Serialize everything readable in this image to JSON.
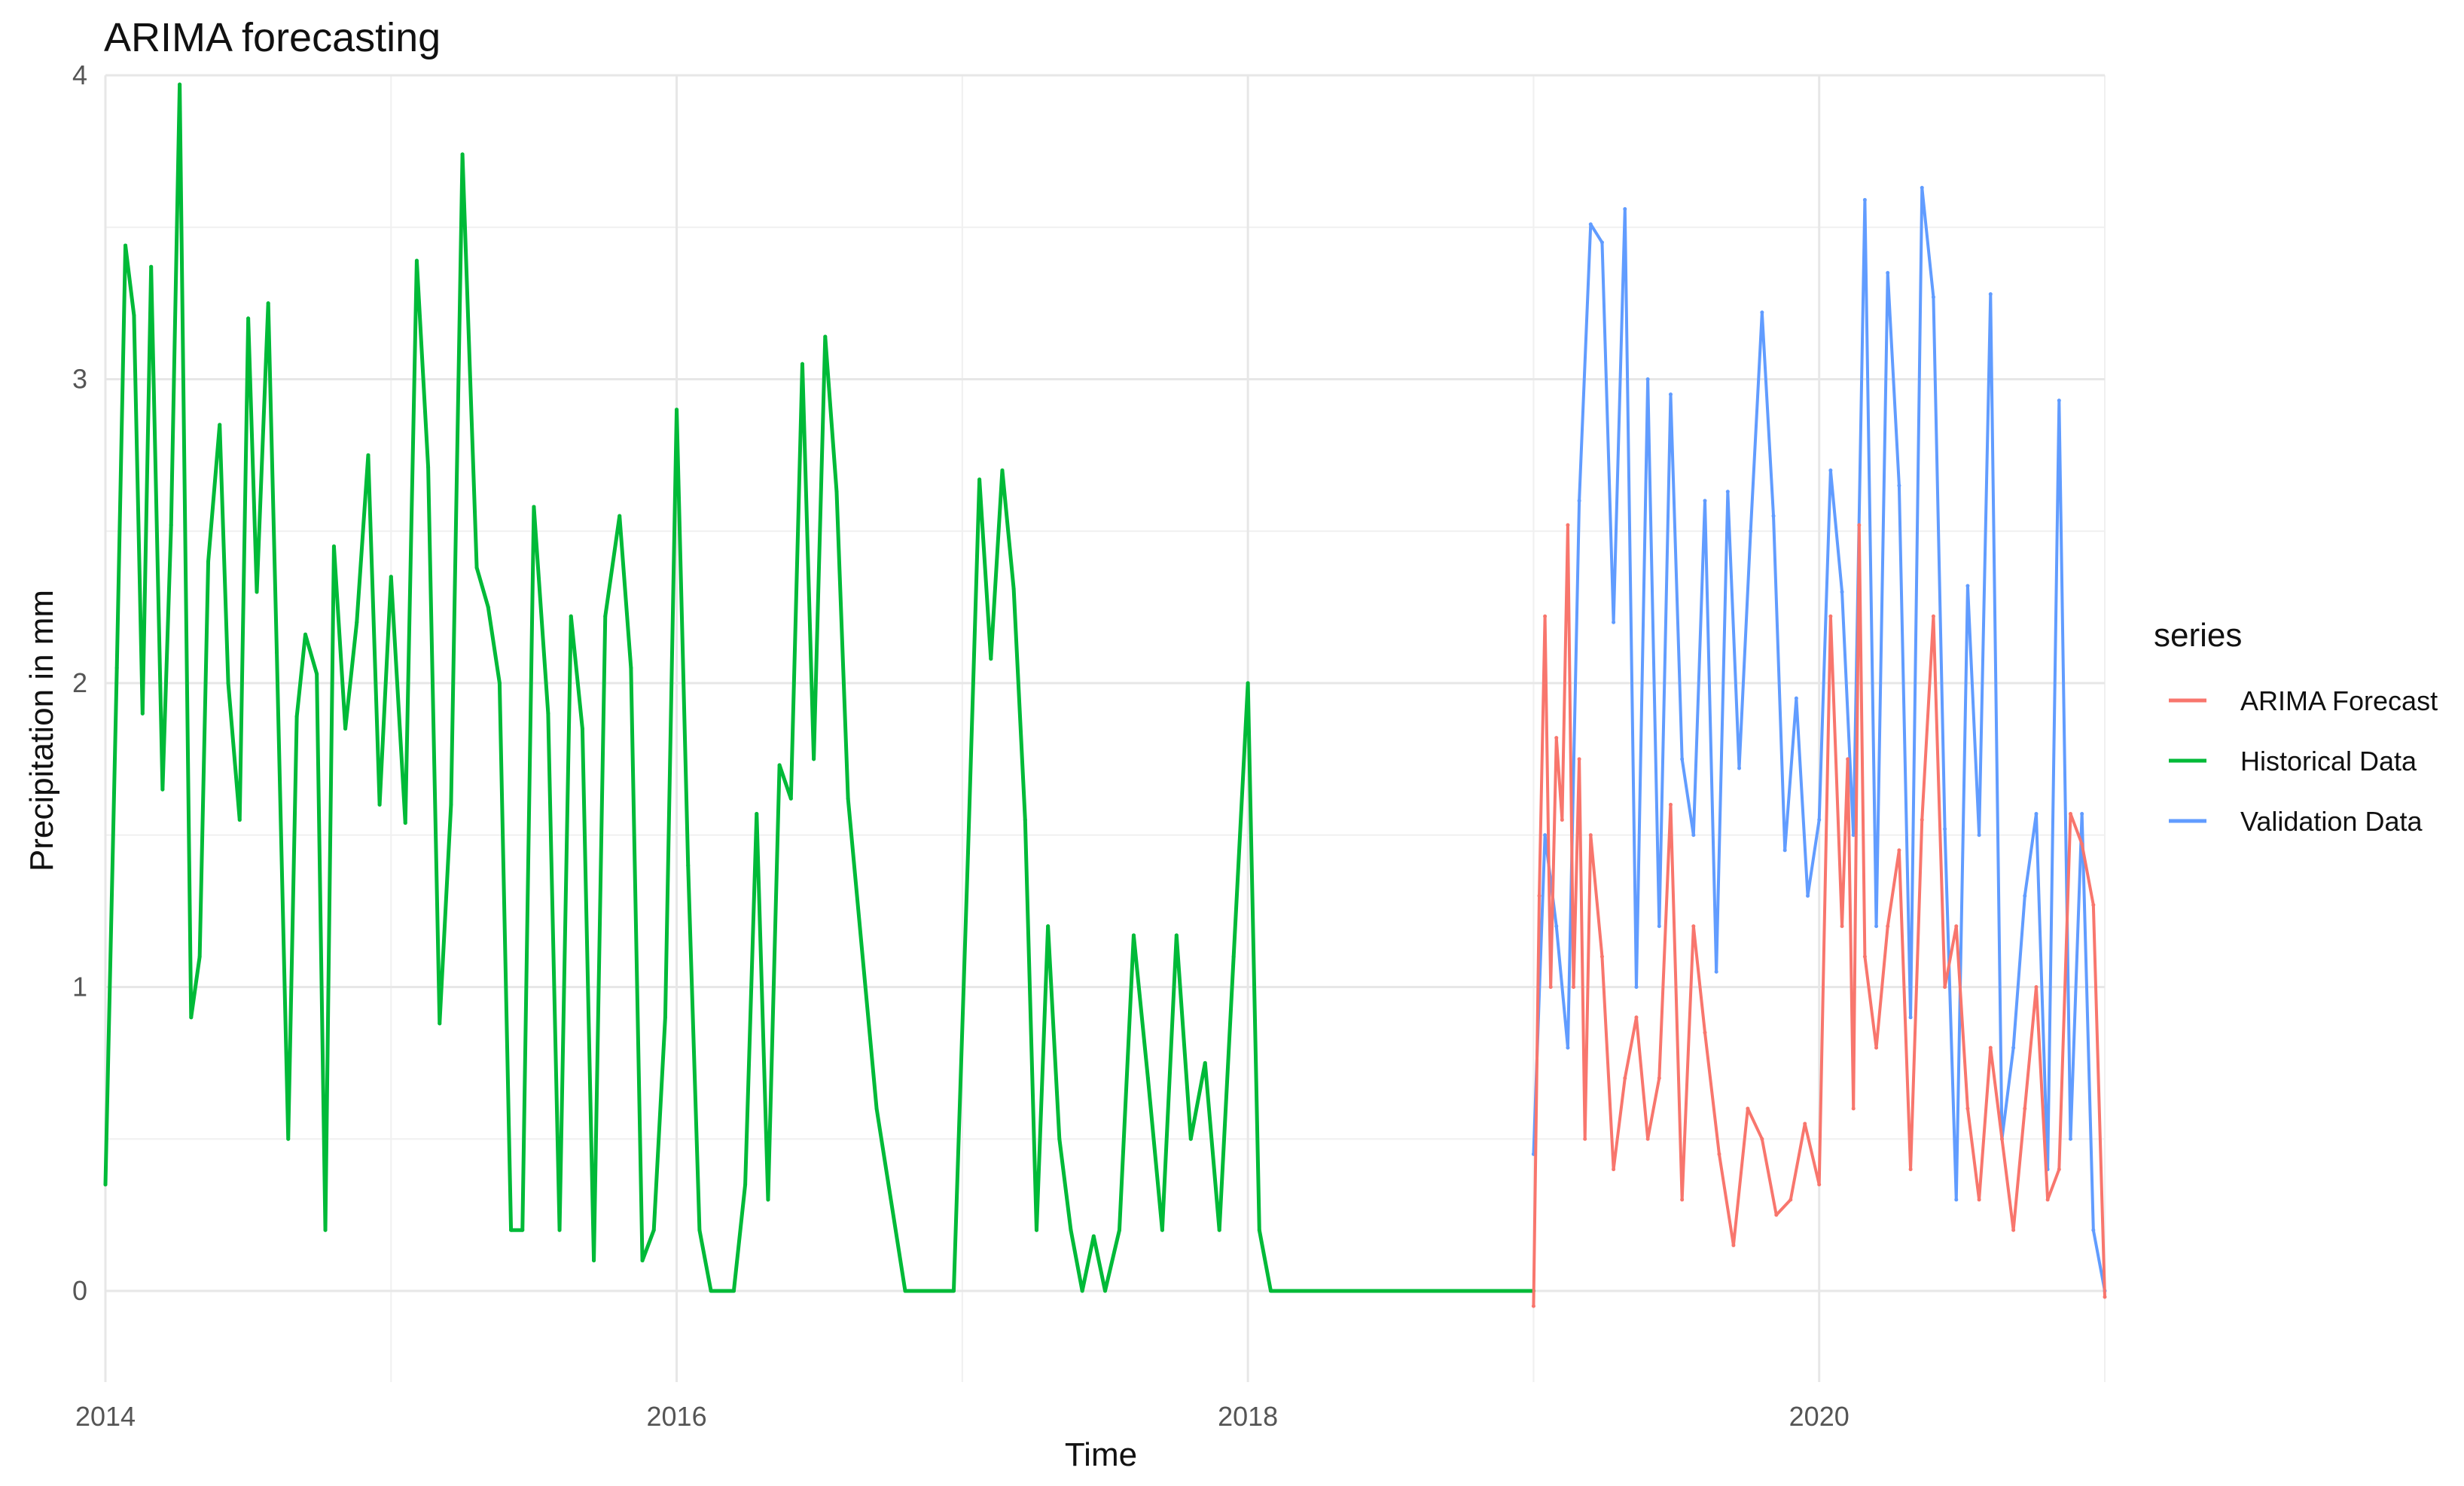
{
  "chart_data": {
    "type": "line",
    "title": "ARIMA forecasting",
    "xlabel": "Time",
    "ylabel": "Precipitation in mm",
    "x_ticks": [
      2014,
      2016,
      2018,
      2020
    ],
    "y_ticks": [
      0,
      1,
      2,
      3,
      4
    ],
    "xlim": [
      2014,
      2021
    ],
    "ylim": [
      -0.3,
      4
    ],
    "grid": true,
    "legend": {
      "title": "series",
      "placement": "right",
      "items": [
        {
          "label": "ARIMA Forecast",
          "color": "#F8766D"
        },
        {
          "label": "Historical Data",
          "color": "#00BA38"
        },
        {
          "label": "Validation Data",
          "color": "#619CFF"
        }
      ]
    },
    "series": [
      {
        "name": "Historical Data",
        "color": "#00BA38",
        "x": [
          2014.0,
          2014.04,
          2014.07,
          2014.1,
          2014.13,
          2014.16,
          2014.2,
          2014.23,
          2014.26,
          2014.3,
          2014.33,
          2014.36,
          2014.4,
          2014.43,
          2014.47,
          2014.5,
          2014.53,
          2014.57,
          2014.6,
          2014.64,
          2014.67,
          2014.7,
          2014.74,
          2014.77,
          2014.8,
          2014.84,
          2014.88,
          2014.92,
          2014.96,
          2015.0,
          2015.05,
          2015.09,
          2015.13,
          2015.17,
          2015.21,
          2015.25,
          2015.3,
          2015.34,
          2015.38,
          2015.42,
          2015.46,
          2015.5,
          2015.55,
          2015.59,
          2015.63,
          2015.67,
          2015.71,
          2015.75,
          2015.8,
          2015.84,
          2015.88,
          2015.92,
          2015.96,
          2016.0,
          2016.04,
          2016.08,
          2016.12,
          2016.16,
          2016.2,
          2016.24,
          2016.28,
          2016.32,
          2016.36,
          2016.4,
          2016.44,
          2016.48,
          2016.52,
          2016.56,
          2016.6,
          2016.7,
          2016.8,
          2016.9,
          2016.97,
          2017.02,
          2017.06,
          2017.1,
          2017.14,
          2017.18,
          2017.22,
          2017.26,
          2017.3,
          2017.34,
          2017.38,
          2017.42,
          2017.46,
          2017.5,
          2017.55,
          2017.6,
          2017.65,
          2017.7,
          2017.75,
          2017.8,
          2017.85,
          2017.9,
          2017.95,
          2018.0,
          2018.04,
          2018.08,
          2018.12,
          2018.16,
          2018.2,
          2018.24,
          2018.28,
          2018.32,
          2018.36,
          2018.4,
          2018.45,
          2018.5,
          2018.55,
          2018.6,
          2018.65,
          2018.7,
          2018.75,
          2018.8,
          2018.85,
          2018.9,
          2018.95,
          2019.0
        ],
        "values": [
          0.35,
          2.05,
          3.44,
          3.21,
          1.9,
          3.37,
          1.65,
          2.52,
          3.97,
          0.9,
          1.1,
          2.4,
          2.85,
          2.0,
          1.55,
          3.2,
          2.3,
          3.25,
          2.1,
          0.5,
          1.89,
          2.16,
          2.03,
          0.2,
          2.45,
          1.85,
          2.2,
          2.75,
          1.6,
          2.35,
          1.54,
          3.39,
          2.71,
          0.88,
          1.6,
          3.74,
          2.38,
          2.25,
          2.0,
          0.2,
          0.2,
          2.58,
          1.9,
          0.2,
          2.22,
          1.85,
          0.1,
          2.22,
          2.55,
          2.05,
          0.1,
          0.2,
          0.9,
          2.9,
          1.4,
          0.2,
          0.0,
          0.0,
          0.0,
          0.35,
          1.57,
          0.3,
          1.73,
          1.62,
          3.05,
          1.75,
          3.14,
          2.63,
          1.62,
          0.6,
          0.0,
          0.0,
          0.0,
          1.44,
          2.67,
          2.08,
          2.7,
          2.31,
          1.55,
          0.2,
          1.2,
          0.5,
          0.2,
          0.0,
          0.18,
          0.0,
          0.2,
          1.17,
          0.7,
          0.2,
          1.17,
          0.5,
          0.75,
          0.2,
          1.1,
          2.0,
          0.2,
          0.0,
          0.0,
          0.0,
          0.0,
          0.0,
          0.0,
          0.0,
          0.0,
          0.0,
          0.0,
          0.0,
          0.0,
          0.0,
          0.0,
          0.0,
          0.0,
          0.0,
          0.0,
          0.0,
          0.0,
          0.0
        ]
      },
      {
        "name": "ARIMA Forecast",
        "color": "#F8766D",
        "x": [
          2019.0,
          2019.02,
          2019.04,
          2019.06,
          2019.08,
          2019.1,
          2019.12,
          2019.14,
          2019.16,
          2019.18,
          2019.2,
          2019.24,
          2019.28,
          2019.32,
          2019.36,
          2019.4,
          2019.44,
          2019.48,
          2019.52,
          2019.56,
          2019.6,
          2019.65,
          2019.7,
          2019.75,
          2019.8,
          2019.85,
          2019.9,
          2019.95,
          2020.0,
          2020.04,
          2020.08,
          2020.1,
          2020.12,
          2020.14,
          2020.16,
          2020.2,
          2020.24,
          2020.28,
          2020.32,
          2020.36,
          2020.4,
          2020.44,
          2020.48,
          2020.52,
          2020.56,
          2020.6,
          2020.64,
          2020.68,
          2020.72,
          2020.76,
          2020.8,
          2020.84,
          2020.88,
          2020.92,
          2020.96,
          2021.0
        ],
        "values": [
          -0.05,
          1.3,
          2.22,
          1.0,
          1.82,
          1.55,
          2.52,
          1.0,
          1.75,
          0.5,
          1.5,
          1.1,
          0.4,
          0.7,
          0.9,
          0.5,
          0.7,
          1.6,
          0.3,
          1.2,
          0.85,
          0.45,
          0.15,
          0.6,
          0.5,
          0.25,
          0.3,
          0.55,
          0.35,
          2.22,
          1.2,
          1.75,
          0.6,
          2.52,
          1.1,
          0.8,
          1.2,
          1.45,
          0.4,
          1.55,
          2.22,
          1.0,
          1.2,
          0.6,
          0.3,
          0.8,
          0.5,
          0.2,
          0.6,
          1.0,
          0.3,
          0.4,
          1.57,
          1.47,
          1.27,
          -0.02
        ]
      },
      {
        "name": "Validation Data",
        "color": "#619CFF",
        "x": [
          2019.0,
          2019.04,
          2019.08,
          2019.12,
          2019.16,
          2019.2,
          2019.24,
          2019.28,
          2019.32,
          2019.36,
          2019.4,
          2019.44,
          2019.48,
          2019.52,
          2019.56,
          2019.6,
          2019.64,
          2019.68,
          2019.72,
          2019.76,
          2019.8,
          2019.84,
          2019.88,
          2019.92,
          2019.96,
          2020.0,
          2020.04,
          2020.08,
          2020.12,
          2020.16,
          2020.2,
          2020.24,
          2020.28,
          2020.32,
          2020.36,
          2020.4,
          2020.44,
          2020.48,
          2020.52,
          2020.56,
          2020.6,
          2020.64,
          2020.68,
          2020.72,
          2020.76,
          2020.8,
          2020.84,
          2020.88,
          2020.92,
          2020.96,
          2021.0
        ],
        "values": [
          0.45,
          1.5,
          1.2,
          0.8,
          2.6,
          3.51,
          3.45,
          2.2,
          3.56,
          1.0,
          3.0,
          1.2,
          2.95,
          1.75,
          1.5,
          2.6,
          1.05,
          2.63,
          1.72,
          2.5,
          3.22,
          2.55,
          1.45,
          1.95,
          1.3,
          1.55,
          2.7,
          2.3,
          1.5,
          3.59,
          1.2,
          3.35,
          2.65,
          0.9,
          3.63,
          3.27,
          1.52,
          0.3,
          2.32,
          1.5,
          3.28,
          0.5,
          0.8,
          1.3,
          1.57,
          0.4,
          2.93,
          0.5,
          1.57,
          0.2,
          0.0
        ]
      }
    ]
  }
}
